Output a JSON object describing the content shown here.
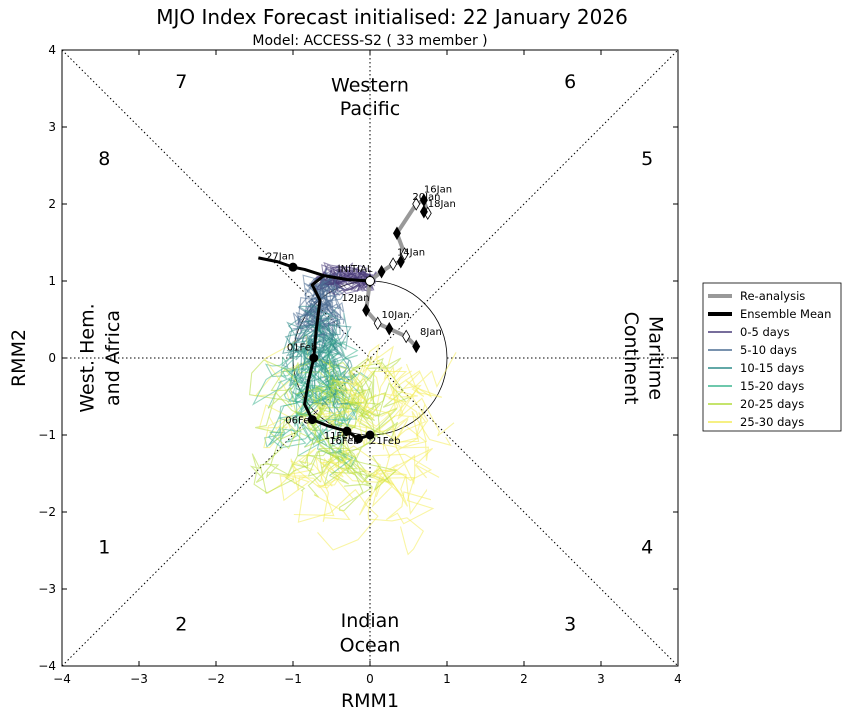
{
  "chart_data": {
    "type": "scatter",
    "title": "MJO Index Forecast initialised:  22  January 2026",
    "subtitle": "Model: ACCESS-S2 ( 33 member )",
    "xlabel": "RMM1",
    "ylabel": "RMM2",
    "xlim": [
      -4,
      4
    ],
    "ylim": [
      -4,
      4
    ],
    "xticks": [
      "−4",
      "−3",
      "−2",
      "−1",
      "0",
      "1",
      "2",
      "3",
      "4"
    ],
    "yticks": [
      "−4",
      "−3",
      "−2",
      "−1",
      "0",
      "1",
      "2",
      "3",
      "4"
    ],
    "phases": [
      {
        "label": "1",
        "x": -3.45,
        "y": -2.45
      },
      {
        "label": "2",
        "x": -2.45,
        "y": -3.45
      },
      {
        "label": "3",
        "x": 2.6,
        "y": -3.45
      },
      {
        "label": "4",
        "x": 3.6,
        "y": -2.45
      },
      {
        "label": "5",
        "x": 3.6,
        "y": 2.6
      },
      {
        "label": "6",
        "x": 2.6,
        "y": 3.6
      },
      {
        "label": "7",
        "x": -2.45,
        "y": 3.6
      },
      {
        "label": "8",
        "x": -3.45,
        "y": 2.6
      }
    ],
    "regions": {
      "top": [
        "Western",
        "Pacific"
      ],
      "bottom": [
        "Indian",
        "Ocean"
      ],
      "left": [
        "West. Hem.",
        "and Africa"
      ],
      "right": [
        "Maritime",
        "Continent"
      ]
    },
    "legend": {
      "position": "right",
      "entries": [
        {
          "label": "Re-analysis",
          "color": "#999999",
          "weight": "thick"
        },
        {
          "label": "Ensemble Mean",
          "color": "#000000",
          "weight": "thick"
        },
        {
          "label": "0-5 days",
          "color": "#4a3d7a",
          "weight": "thin"
        },
        {
          "label": "5-10 days",
          "color": "#4d6e93",
          "weight": "thin"
        },
        {
          "label": "10-15 days",
          "color": "#2f8c8a",
          "weight": "thin"
        },
        {
          "label": "15-20 days",
          "color": "#3fb590",
          "weight": "thin"
        },
        {
          "label": "20-25 days",
          "color": "#b2dc3c",
          "weight": "thin"
        },
        {
          "label": "25-30 days",
          "color": "#f4ec5a",
          "weight": "thin"
        }
      ]
    },
    "reanalysis": {
      "points": [
        [
          0.6,
          0.15
        ],
        [
          0.47,
          0.28
        ],
        [
          0.25,
          0.38
        ],
        [
          0.1,
          0.45
        ],
        [
          -0.05,
          0.62
        ],
        [
          0.0,
          1.0
        ],
        [
          0.15,
          1.12
        ],
        [
          0.3,
          1.22
        ],
        [
          0.4,
          1.25
        ],
        [
          0.45,
          1.35
        ],
        [
          0.35,
          1.62
        ],
        [
          0.6,
          2.0
        ],
        [
          0.7,
          2.05
        ],
        [
          0.75,
          1.88
        ],
        [
          0.7,
          1.9
        ]
      ],
      "labels": [
        {
          "text": "8Jan",
          "x": 0.6,
          "y": 0.15,
          "dx": 0.05,
          "dy": 0.15
        },
        {
          "text": "10Jan",
          "x": 0.1,
          "y": 0.45,
          "dx": 0.05,
          "dy": 0.07
        },
        {
          "text": "12Jan",
          "x": -0.05,
          "y": 0.62,
          "dx": -0.32,
          "dy": 0.12
        },
        {
          "text": "14Jan",
          "x": 0.4,
          "y": 1.25,
          "dx": -0.05,
          "dy": 0.08
        },
        {
          "text": "16Jan",
          "x": 0.7,
          "y": 2.05,
          "dx": 0.0,
          "dy": 0.1
        },
        {
          "text": "20Jan",
          "x": 0.6,
          "y": 2.0,
          "dx": -0.05,
          "dy": 0.05
        },
        {
          "text": "18Jan",
          "x": 0.75,
          "y": 1.88,
          "dx": 0.0,
          "dy": 0.08
        }
      ]
    },
    "ensemble_mean": {
      "points": [
        [
          0.0,
          1.0
        ],
        [
          -0.3,
          1.02
        ],
        [
          -0.6,
          1.07
        ],
        [
          -0.85,
          1.15
        ],
        [
          -1.0,
          1.18
        ],
        [
          -1.2,
          1.25
        ],
        [
          -1.45,
          1.3
        ],
        [
          -0.75,
          0.95
        ],
        [
          -0.65,
          0.75
        ],
        [
          -0.7,
          0.35
        ],
        [
          -0.73,
          0.0
        ],
        [
          -0.8,
          -0.3
        ],
        [
          -0.85,
          -0.6
        ],
        [
          -0.75,
          -0.8
        ],
        [
          -0.55,
          -0.88
        ],
        [
          -0.3,
          -0.95
        ],
        [
          -0.15,
          -1.05
        ],
        [
          0.0,
          -1.0
        ]
      ],
      "labels": [
        {
          "text": "INITIAL",
          "x": 0.0,
          "y": 1.0,
          "dx": -0.42,
          "dy": 0.12
        },
        {
          "text": "27Jan",
          "x": -1.0,
          "y": 1.18,
          "dx": -0.35,
          "dy": 0.1
        },
        {
          "text": "01Feb",
          "x": -0.73,
          "y": 0.0,
          "dx": -0.35,
          "dy": 0.1
        },
        {
          "text": "06Feb",
          "x": -0.75,
          "y": -0.8,
          "dx": -0.35,
          "dy": -0.05
        },
        {
          "text": "11Feb",
          "x": -0.3,
          "y": -0.95,
          "dx": -0.3,
          "dy": -0.1
        },
        {
          "text": "16Feb",
          "x": -0.15,
          "y": -1.05,
          "dx": -0.38,
          "dy": -0.07
        },
        {
          "text": "21Feb",
          "x": 0.0,
          "y": -1.0,
          "dx": 0.0,
          "dy": -0.12
        }
      ]
    }
  }
}
